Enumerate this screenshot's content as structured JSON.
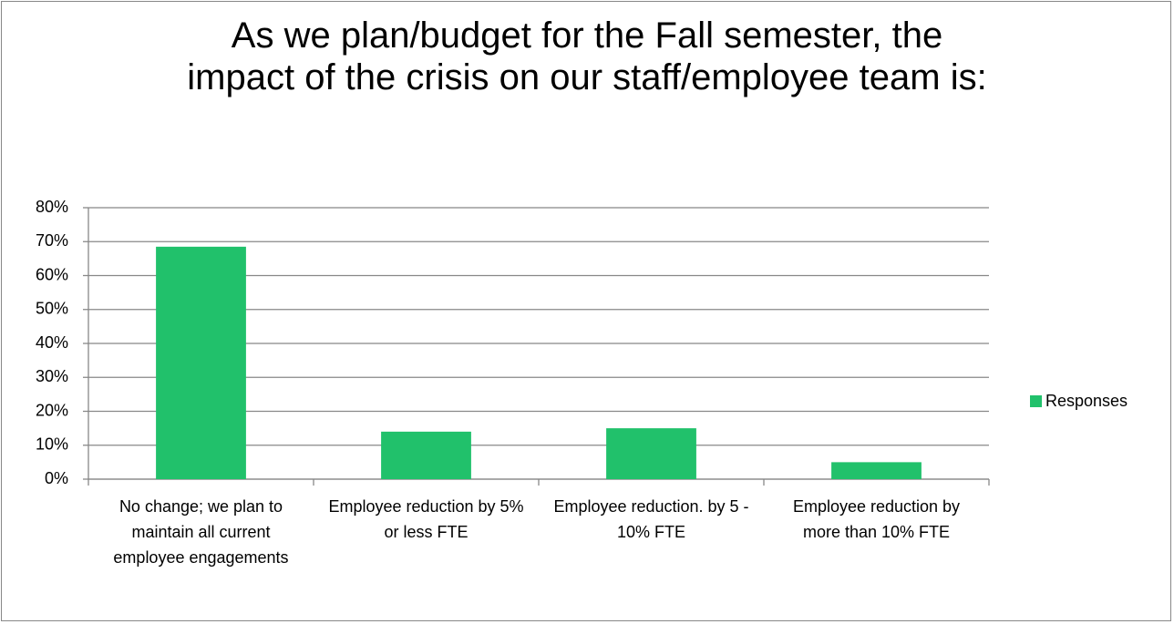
{
  "chart_data": {
    "type": "bar",
    "title": "As we plan/budget for the Fall semester, the impact of the crisis on our staff/employee team is:",
    "categories": [
      "No change; we plan to maintain all current employee engagements",
      "Employee reduction by 5% or less FTE",
      "Employee reduction. by 5 - 10% FTE",
      "Employee reduction by more than 10% FTE"
    ],
    "series": [
      {
        "name": "Responses",
        "color": "#21c16b",
        "values": [
          68.5,
          14,
          15,
          5
        ]
      }
    ],
    "ylim": [
      0,
      80
    ],
    "yticks": [
      {
        "value": 0,
        "label": "0%"
      },
      {
        "value": 10,
        "label": "10%"
      },
      {
        "value": 20,
        "label": "20%"
      },
      {
        "value": 30,
        "label": "30%"
      },
      {
        "value": 40,
        "label": "40%"
      },
      {
        "value": 50,
        "label": "50%"
      },
      {
        "value": 60,
        "label": "60%"
      },
      {
        "value": 70,
        "label": "70%"
      },
      {
        "value": 80,
        "label": "80%"
      }
    ],
    "grid": true,
    "legend": "right"
  }
}
